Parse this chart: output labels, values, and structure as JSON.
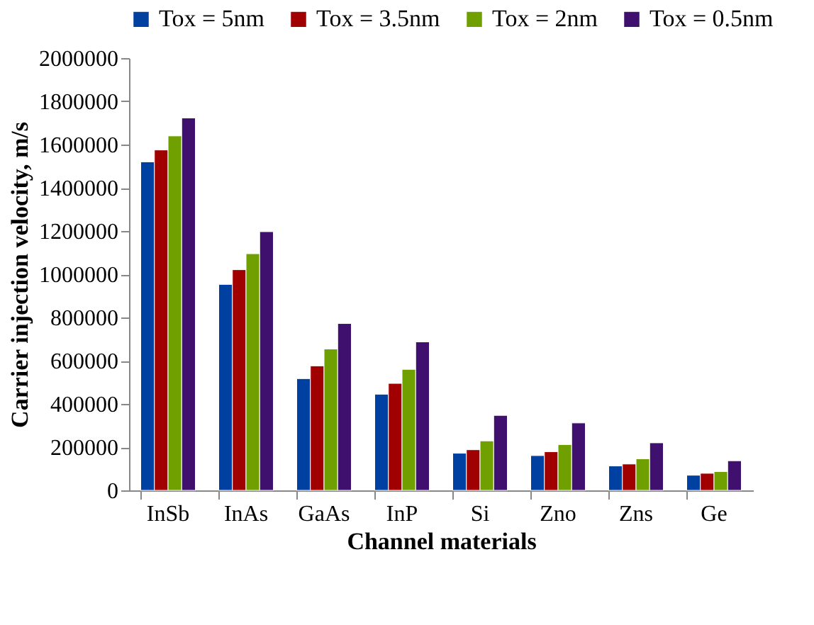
{
  "chart_data": {
    "type": "bar",
    "xlabel": "Channel materials",
    "ylabel": "Carrier injection velocity, m/s",
    "categories": [
      "InSb",
      "InAs",
      "GaAs",
      "InP",
      "Si",
      "Zno",
      "Zns",
      "Ge"
    ],
    "series": [
      {
        "name": "Tox = 5nm",
        "color": "#0040a0",
        "values": [
          1520000,
          953000,
          517000,
          445000,
          172000,
          161000,
          113000,
          70000
        ]
      },
      {
        "name": "Tox = 3.5nm",
        "color": "#a00000",
        "values": [
          1575000,
          1021000,
          576000,
          495000,
          188000,
          179000,
          122000,
          79000
        ]
      },
      {
        "name": "Tox = 2nm",
        "color": "#70a000",
        "values": [
          1640000,
          1095000,
          654000,
          560000,
          229000,
          212000,
          146000,
          87000
        ]
      },
      {
        "name": "Tox = 0.5nm",
        "color": "#40106f",
        "values": [
          1723000,
          1197000,
          772000,
          687000,
          347000,
          312000,
          220000,
          137000
        ]
      }
    ],
    "ylim": [
      0,
      2000000
    ],
    "yticks": [
      0,
      200000,
      400000,
      600000,
      800000,
      1000000,
      1200000,
      1400000,
      1600000,
      1800000,
      2000000
    ],
    "grid": false,
    "legend": "top"
  }
}
